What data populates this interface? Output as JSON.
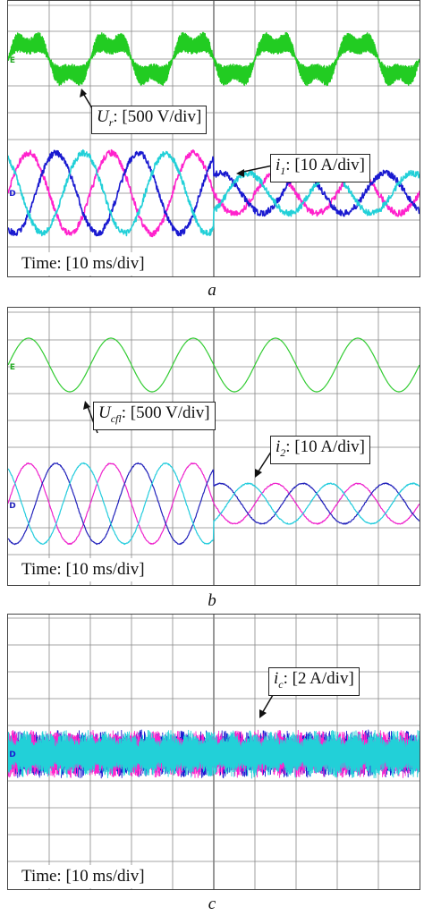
{
  "chart_data": [
    {
      "type": "line",
      "panel": "a",
      "caption": "a",
      "time_label": "Time: [10 ms/div]",
      "divisions_x": 10,
      "traces": [
        {
          "symbol": "U",
          "subscript": "r",
          "scale": "500 V/div",
          "color": "#22cc22",
          "kind": "pwm-square",
          "cycles": 5,
          "amplitude_div": 1.0
        },
        {
          "symbol": "i",
          "subscript": "1",
          "scale": "10 A/div",
          "colors": [
            "#ff22cc",
            "#1a1ad0",
            "#22d0d8"
          ],
          "kind": "three-phase",
          "cycles": 5,
          "amplitude_div_first_half": 1.5,
          "amplitude_div_second_half": 0.75
        }
      ]
    },
    {
      "type": "line",
      "panel": "b",
      "caption": "b",
      "time_label": "Time: [10 ms/div]",
      "divisions_x": 10,
      "traces": [
        {
          "symbol": "U",
          "subscript": "cfl",
          "scale": "500 V/div",
          "color": "#33cc33",
          "kind": "sine",
          "cycles": 5,
          "amplitude_div": 1.0
        },
        {
          "symbol": "i",
          "subscript": "2",
          "scale": "10 A/div",
          "colors": [
            "#ee22cc",
            "#2222bb",
            "#22ccdd"
          ],
          "kind": "three-phase",
          "cycles": 5,
          "amplitude_div_first_half": 1.5,
          "amplitude_div_second_half": 0.75
        }
      ]
    },
    {
      "type": "line",
      "panel": "c",
      "caption": "c",
      "time_label": "Time: [10 ms/div]",
      "divisions_x": 10,
      "traces": [
        {
          "symbol": "i",
          "subscript": "c",
          "scale": "2 A/div",
          "colors": [
            "#1a1ad0",
            "#ff22cc",
            "#22d0d8"
          ],
          "kind": "ripple",
          "amplitude_div": 0.9
        }
      ]
    }
  ],
  "labels": {
    "a_voltage": {
      "symbol": "U",
      "sub": "r",
      "text": ": [500 V/div]"
    },
    "a_current": {
      "symbol": "i",
      "sub": "1",
      "text": ": [10 A/div]"
    },
    "b_voltage": {
      "symbol": "U",
      "sub": "cfl",
      "text": ": [500 V/div]"
    },
    "b_current": {
      "symbol": "i",
      "sub": "2",
      "text": ": [10 A/div]"
    },
    "c_current": {
      "symbol": "i",
      "sub": "c",
      "text": ": [2 A/div]"
    }
  },
  "captions": {
    "a": "a",
    "b": "b",
    "c": "c"
  },
  "time": {
    "a": "Time: [10 ms/div]",
    "b": "Time: [10 ms/div]",
    "c": "Time: [10 ms/div]"
  },
  "markers": {
    "green": "E",
    "blue": "D"
  }
}
